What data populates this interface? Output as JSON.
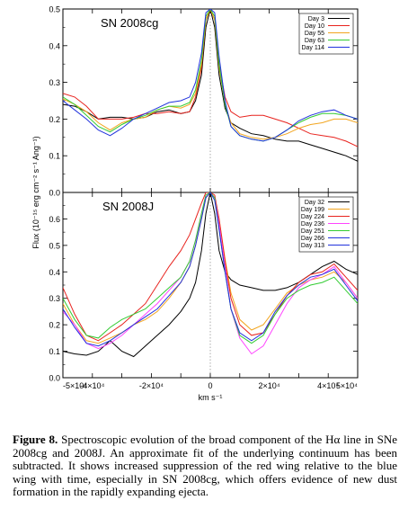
{
  "chart_data": [
    {
      "type": "line",
      "title": "SN 2008cg",
      "xlim": [
        -50000,
        50000
      ],
      "ylim": [
        0,
        0.5
      ],
      "yticks": [
        "0.0",
        "0.1",
        "0.2",
        "0.3",
        "0.4",
        "0.5"
      ],
      "legend_position": "top-right",
      "series": [
        {
          "name": "Day 3",
          "color": "#000000",
          "x": [
            -50000,
            -46000,
            -42000,
            -38000,
            -34000,
            -30000,
            -26000,
            -22000,
            -18000,
            -14000,
            -10000,
            -7000,
            -5000,
            -3000,
            -1500,
            0,
            1500,
            3000,
            5000,
            7000,
            10000,
            14000,
            18000,
            22000,
            26000,
            30000,
            34000,
            38000,
            42000,
            46000,
            50000
          ],
          "y": [
            0.24,
            0.235,
            0.22,
            0.2,
            0.205,
            0.205,
            0.2,
            0.205,
            0.22,
            0.225,
            0.215,
            0.22,
            0.25,
            0.32,
            0.45,
            0.5,
            0.45,
            0.32,
            0.23,
            0.19,
            0.175,
            0.16,
            0.155,
            0.145,
            0.14,
            0.14,
            0.13,
            0.12,
            0.11,
            0.1,
            0.085
          ]
        },
        {
          "name": "Day 10",
          "color": "#e8231e",
          "x": [
            -50000,
            -46000,
            -42000,
            -38000,
            -34000,
            -30000,
            -26000,
            -22000,
            -18000,
            -14000,
            -10000,
            -7000,
            -5000,
            -3000,
            -1500,
            0,
            1500,
            3000,
            5000,
            7000,
            10000,
            14000,
            18000,
            22000,
            26000,
            30000,
            34000,
            38000,
            42000,
            46000,
            50000
          ],
          "y": [
            0.27,
            0.26,
            0.235,
            0.2,
            0.2,
            0.2,
            0.205,
            0.215,
            0.215,
            0.22,
            0.215,
            0.22,
            0.26,
            0.34,
            0.47,
            0.5,
            0.47,
            0.35,
            0.26,
            0.22,
            0.205,
            0.21,
            0.21,
            0.2,
            0.19,
            0.175,
            0.16,
            0.155,
            0.15,
            0.14,
            0.125
          ]
        },
        {
          "name": "Day 55",
          "color": "#f2a51f",
          "x": [
            -50000,
            -46000,
            -42000,
            -38000,
            -34000,
            -30000,
            -26000,
            -22000,
            -18000,
            -14000,
            -10000,
            -7000,
            -5000,
            -3000,
            -1500,
            0,
            1500,
            3000,
            5000,
            7000,
            10000,
            14000,
            18000,
            22000,
            26000,
            30000,
            34000,
            38000,
            42000,
            46000,
            50000
          ],
          "y": [
            0.255,
            0.24,
            0.22,
            0.19,
            0.17,
            0.19,
            0.2,
            0.205,
            0.225,
            0.235,
            0.23,
            0.24,
            0.27,
            0.35,
            0.47,
            0.5,
            0.47,
            0.34,
            0.24,
            0.19,
            0.16,
            0.15,
            0.145,
            0.15,
            0.16,
            0.175,
            0.185,
            0.19,
            0.2,
            0.2,
            0.19
          ]
        },
        {
          "name": "Day 63",
          "color": "#33cc33",
          "x": [
            -50000,
            -46000,
            -42000,
            -38000,
            -34000,
            -30000,
            -26000,
            -22000,
            -18000,
            -14000,
            -10000,
            -7000,
            -5000,
            -3000,
            -1500,
            0,
            1500,
            3000,
            5000,
            7000,
            10000,
            14000,
            18000,
            22000,
            26000,
            30000,
            34000,
            38000,
            42000,
            46000,
            50000
          ],
          "y": [
            0.26,
            0.24,
            0.21,
            0.18,
            0.165,
            0.185,
            0.2,
            0.21,
            0.225,
            0.235,
            0.235,
            0.245,
            0.28,
            0.36,
            0.48,
            0.5,
            0.48,
            0.35,
            0.24,
            0.18,
            0.155,
            0.145,
            0.14,
            0.15,
            0.17,
            0.19,
            0.205,
            0.215,
            0.215,
            0.21,
            0.2
          ]
        },
        {
          "name": "Day 114",
          "color": "#2233dd",
          "x": [
            -50000,
            -46000,
            -42000,
            -38000,
            -34000,
            -30000,
            -26000,
            -22000,
            -18000,
            -14000,
            -10000,
            -7000,
            -5000,
            -3000,
            -1500,
            0,
            1500,
            3000,
            5000,
            7000,
            10000,
            14000,
            18000,
            22000,
            26000,
            30000,
            34000,
            38000,
            42000,
            46000,
            50000
          ],
          "y": [
            0.25,
            0.225,
            0.2,
            0.17,
            0.155,
            0.175,
            0.2,
            0.215,
            0.23,
            0.245,
            0.25,
            0.26,
            0.3,
            0.38,
            0.49,
            0.5,
            0.49,
            0.37,
            0.25,
            0.18,
            0.155,
            0.145,
            0.14,
            0.15,
            0.17,
            0.195,
            0.21,
            0.22,
            0.225,
            0.21,
            0.2
          ]
        }
      ]
    },
    {
      "type": "line",
      "title": "SN 2008J",
      "xlim": [
        -50000,
        50000
      ],
      "ylim": [
        0,
        0.7
      ],
      "xticks": [
        "-5×10⁴",
        "-4×10⁴",
        "-2×10⁴",
        "0",
        "2×10⁴",
        "4×10⁴",
        "5×10⁴"
      ],
      "xtick_values": [
        -50000,
        -40000,
        -20000,
        0,
        20000,
        40000,
        50000
      ],
      "yticks": [
        "0.0",
        "0.1",
        "0.2",
        "0.3",
        "0.4",
        "0.5",
        "0.6"
      ],
      "xlabel": "km s⁻¹",
      "legend_position": "top-right",
      "series": [
        {
          "name": "Day 32",
          "color": "#000000",
          "x": [
            -50000,
            -46000,
            -42000,
            -38000,
            -34000,
            -30000,
            -26000,
            -22000,
            -18000,
            -14000,
            -10000,
            -7000,
            -5000,
            -3000,
            -1500,
            0,
            1500,
            3000,
            5000,
            7000,
            10000,
            14000,
            18000,
            22000,
            26000,
            30000,
            34000,
            38000,
            42000,
            46000,
            50000
          ],
          "y": [
            0.1,
            0.09,
            0.085,
            0.1,
            0.14,
            0.1,
            0.08,
            0.12,
            0.16,
            0.2,
            0.25,
            0.3,
            0.36,
            0.48,
            0.62,
            0.7,
            0.62,
            0.48,
            0.4,
            0.37,
            0.35,
            0.34,
            0.33,
            0.33,
            0.34,
            0.36,
            0.39,
            0.42,
            0.44,
            0.41,
            0.39
          ]
        },
        {
          "name": "Day 199",
          "color": "#f2a51f",
          "x": [
            -50000,
            -46000,
            -42000,
            -38000,
            -34000,
            -30000,
            -26000,
            -22000,
            -18000,
            -14000,
            -10000,
            -7000,
            -5000,
            -3000,
            -1500,
            0,
            1500,
            3000,
            5000,
            7000,
            10000,
            14000,
            18000,
            22000,
            26000,
            30000,
            34000,
            38000,
            42000,
            46000,
            50000
          ],
          "y": [
            0.28,
            0.2,
            0.14,
            0.13,
            0.15,
            0.17,
            0.2,
            0.22,
            0.25,
            0.3,
            0.36,
            0.42,
            0.5,
            0.6,
            0.68,
            0.7,
            0.68,
            0.6,
            0.45,
            0.32,
            0.22,
            0.18,
            0.2,
            0.26,
            0.32,
            0.35,
            0.37,
            0.38,
            0.4,
            0.36,
            0.3
          ]
        },
        {
          "name": "Day 224",
          "color": "#e8231e",
          "x": [
            -50000,
            -46000,
            -42000,
            -38000,
            -34000,
            -30000,
            -26000,
            -22000,
            -18000,
            -14000,
            -10000,
            -7000,
            -5000,
            -3000,
            -1500,
            0,
            1500,
            3000,
            5000,
            7000,
            10000,
            14000,
            18000,
            22000,
            26000,
            30000,
            34000,
            38000,
            42000,
            46000,
            50000
          ],
          "y": [
            0.34,
            0.24,
            0.16,
            0.14,
            0.17,
            0.2,
            0.24,
            0.28,
            0.35,
            0.42,
            0.48,
            0.54,
            0.6,
            0.66,
            0.7,
            0.7,
            0.69,
            0.6,
            0.44,
            0.3,
            0.2,
            0.16,
            0.17,
            0.24,
            0.31,
            0.36,
            0.39,
            0.4,
            0.43,
            0.38,
            0.33
          ]
        },
        {
          "name": "Day 236",
          "color": "#ff44ff",
          "x": [
            -50000,
            -46000,
            -42000,
            -38000,
            -34000,
            -30000,
            -26000,
            -22000,
            -18000,
            -14000,
            -10000,
            -7000,
            -5000,
            -3000,
            -1500,
            0,
            1500,
            3000,
            5000,
            7000,
            10000,
            14000,
            18000,
            22000,
            26000,
            30000,
            34000,
            38000,
            42000,
            46000,
            50000
          ],
          "y": [
            0.25,
            0.2,
            0.13,
            0.11,
            0.13,
            0.16,
            0.2,
            0.24,
            0.28,
            0.33,
            0.38,
            0.44,
            0.52,
            0.62,
            0.69,
            0.7,
            0.68,
            0.58,
            0.42,
            0.26,
            0.15,
            0.09,
            0.12,
            0.2,
            0.28,
            0.34,
            0.37,
            0.39,
            0.42,
            0.36,
            0.3
          ]
        },
        {
          "name": "Day 251",
          "color": "#33cc33",
          "x": [
            -50000,
            -46000,
            -42000,
            -38000,
            -34000,
            -30000,
            -26000,
            -22000,
            -18000,
            -14000,
            -10000,
            -7000,
            -5000,
            -3000,
            -1500,
            0,
            1500,
            3000,
            5000,
            7000,
            10000,
            14000,
            18000,
            22000,
            26000,
            30000,
            34000,
            38000,
            42000,
            46000,
            50000
          ],
          "y": [
            0.3,
            0.22,
            0.16,
            0.15,
            0.19,
            0.22,
            0.24,
            0.26,
            0.3,
            0.34,
            0.38,
            0.44,
            0.52,
            0.62,
            0.69,
            0.7,
            0.68,
            0.56,
            0.4,
            0.26,
            0.16,
            0.13,
            0.16,
            0.24,
            0.3,
            0.33,
            0.35,
            0.36,
            0.38,
            0.33,
            0.28
          ]
        },
        {
          "name": "Day 266",
          "color": "#2233dd",
          "x": [
            -50000,
            -46000,
            -42000,
            -38000,
            -34000,
            -30000,
            -26000,
            -22000,
            -18000,
            -14000,
            -10000,
            -7000,
            -5000,
            -3000,
            -1500,
            0,
            1500,
            3000,
            5000,
            7000,
            10000,
            14000,
            18000,
            22000,
            26000,
            30000,
            34000,
            38000,
            42000,
            46000,
            50000
          ],
          "y": [
            0.26,
            0.19,
            0.13,
            0.12,
            0.14,
            0.17,
            0.2,
            0.23,
            0.26,
            0.31,
            0.36,
            0.42,
            0.5,
            0.6,
            0.68,
            0.7,
            0.67,
            0.56,
            0.4,
            0.26,
            0.17,
            0.14,
            0.17,
            0.25,
            0.31,
            0.35,
            0.38,
            0.39,
            0.41,
            0.35,
            0.29
          ]
        }
      ]
    }
  ],
  "legend_extra": {
    "panel": 1,
    "name": "Day 313",
    "color": "#2233dd"
  },
  "y_axis_label": "Flux (10⁻¹⁵ erg cm⁻² s⁻¹ Ang⁻¹)",
  "caption": {
    "label": "Figure 8.",
    "text": "Spectroscopic evolution of the broad component of the Hα line in SNe 2008cg and 2008J. An approximate fit of the underlying continuum has been subtracted. It shows increased suppression of the red wing relative to the blue wing with time, especially in SN 2008cg, which offers evidence of new dust formation in the rapidly expanding ejecta."
  }
}
